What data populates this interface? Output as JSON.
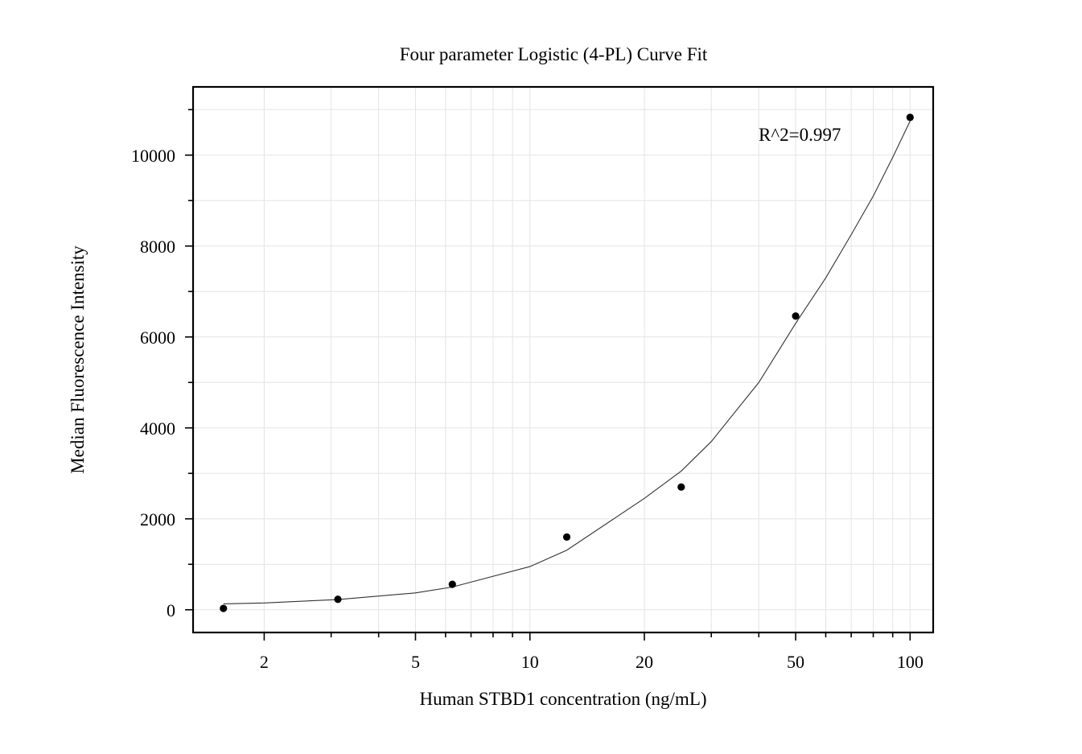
{
  "chart_data": {
    "type": "scatter",
    "title": "Four parameter Logistic (4-PL) Curve Fit",
    "xlabel": "Human STBD1 concentration (ng/mL)",
    "ylabel": "Median Fluorescence Intensity",
    "x_scale": "log",
    "xlim": [
      1.3,
      115
    ],
    "ylim": [
      -500,
      11500
    ],
    "x_ticks": [
      2,
      5,
      10,
      20,
      50,
      100
    ],
    "x_tick_labels": [
      "2",
      "5",
      "10",
      "20",
      "50",
      "100"
    ],
    "y_ticks": [
      0,
      2000,
      4000,
      6000,
      8000,
      10000
    ],
    "y_tick_labels": [
      "0",
      "2000",
      "4000",
      "6000",
      "8000",
      "10000"
    ],
    "grid": true,
    "annotation": "R^2=0.997",
    "series": [
      {
        "type": "scatter",
        "x": [
          1.5625,
          3.125,
          6.25,
          12.5,
          25,
          50,
          100
        ],
        "y": [
          30,
          230,
          560,
          1600,
          2700,
          6460,
          10830
        ]
      },
      {
        "type": "line",
        "x": [
          1.5625,
          2,
          3.125,
          5,
          6.25,
          10,
          12.5,
          20,
          25,
          30,
          40,
          50,
          60,
          70,
          80,
          90,
          100
        ],
        "y": [
          130,
          150,
          225,
          370,
          500,
          950,
          1310,
          2450,
          3050,
          3700,
          5000,
          6300,
          7300,
          8250,
          9100,
          9950,
          10750
        ]
      }
    ]
  }
}
